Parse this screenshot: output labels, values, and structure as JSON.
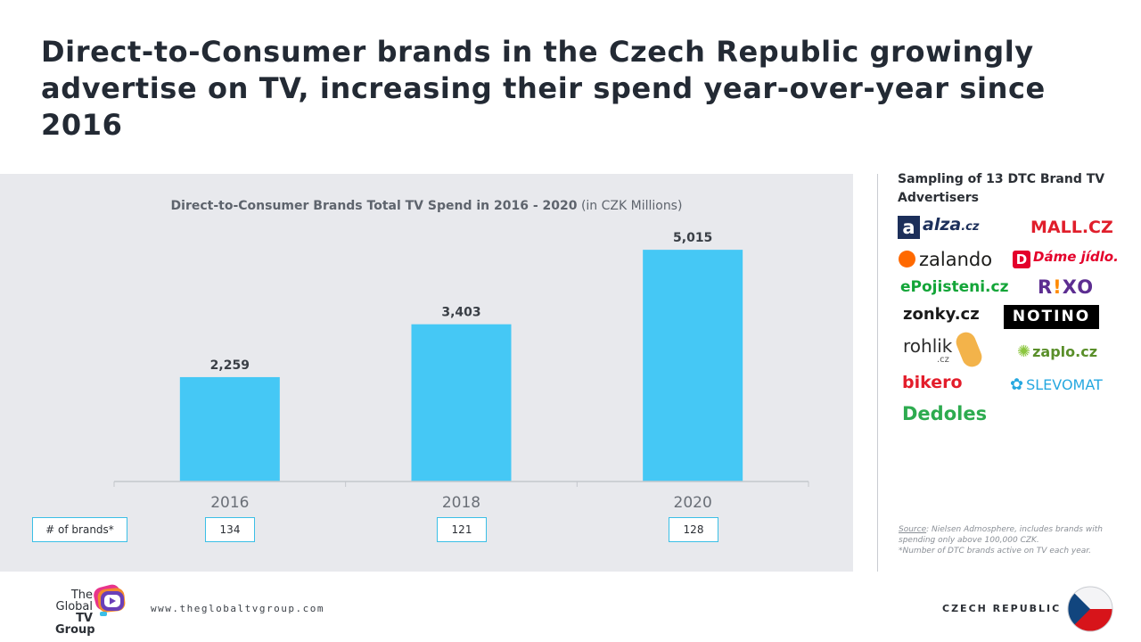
{
  "headline": "Direct-to-Consumer brands in the Czech Republic growingly advertise on TV, increasing their spend year-over-year since 2016",
  "chart_data": {
    "type": "bar",
    "title": "Direct-to-Consumer Brands Total TV Spend in 2016 - 2020",
    "title_unit": "(in CZK Millions)",
    "categories": [
      "2016",
      "2018",
      "2020"
    ],
    "values": [
      2259,
      3403,
      5015
    ],
    "value_labels": [
      "2,259",
      "3,403",
      "5,015"
    ],
    "ylim": [
      0,
      5500
    ],
    "xlabel": "",
    "ylabel": "",
    "bar_color": "#45c8f5",
    "grid": false
  },
  "brands": {
    "label": "# of brands*",
    "counts": [
      "134",
      "121",
      "128"
    ]
  },
  "sidebar": {
    "title": "Sampling of 13 DTC Brand TV Advertisers",
    "logos": {
      "alza_mark": "a",
      "alza_name": "alza",
      "alza_tld": ".cz",
      "mall": "MALL.CZ",
      "zalando": "zalando",
      "dame_mark": "D",
      "dame": "Dáme jídlo.",
      "epojisteni": "ePojisteni.cz",
      "rixo_r": "R",
      "rixo_bang": "!",
      "rixo_xo": "XO",
      "zonky": "zonky.cz",
      "notino": "NOTINO",
      "rohlik": "rohlik",
      "rohlik_tld": ".cz",
      "zaplo_mark": "✺",
      "zaplo": "zaplo.cz",
      "bikero": "bikero",
      "slevomat_mark": "✿",
      "slevomat": "SLEVOMAT",
      "dedoles": "Dedoles"
    }
  },
  "source": {
    "label": "Source",
    "text": ": Nielsen Admosphere, includes brands with spending only above 100,000 CZK.",
    "note": "*Number of DTC brands active on TV each year."
  },
  "footer": {
    "logo_line1": "The",
    "logo_line2": "Global",
    "logo_line3": "TV Group",
    "url": "www.theglobaltvgroup.com",
    "country": "CZECH REPUBLIC"
  },
  "colors": {
    "accent": "#45c8f5",
    "panel": "#e8e9ed"
  }
}
